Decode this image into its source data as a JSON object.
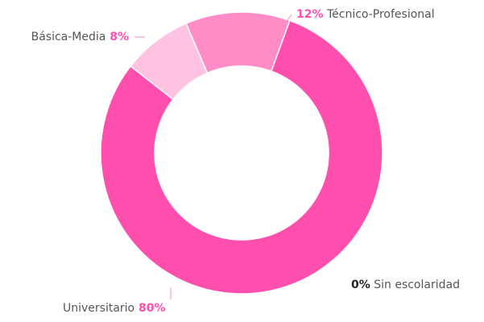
{
  "chart_data": {
    "type": "donut",
    "categories": [
      "Básica-Media",
      "Técnico-Profesional",
      "Universitario",
      "Sin escolaridad"
    ],
    "values": [
      8,
      12,
      80,
      0
    ],
    "value_labels": [
      "8%",
      "12%",
      "80%",
      "0%"
    ],
    "colors": [
      "#ffc2e0",
      "#ff8cc6",
      "#ff4fae",
      "#e0e0e0"
    ]
  }
}
